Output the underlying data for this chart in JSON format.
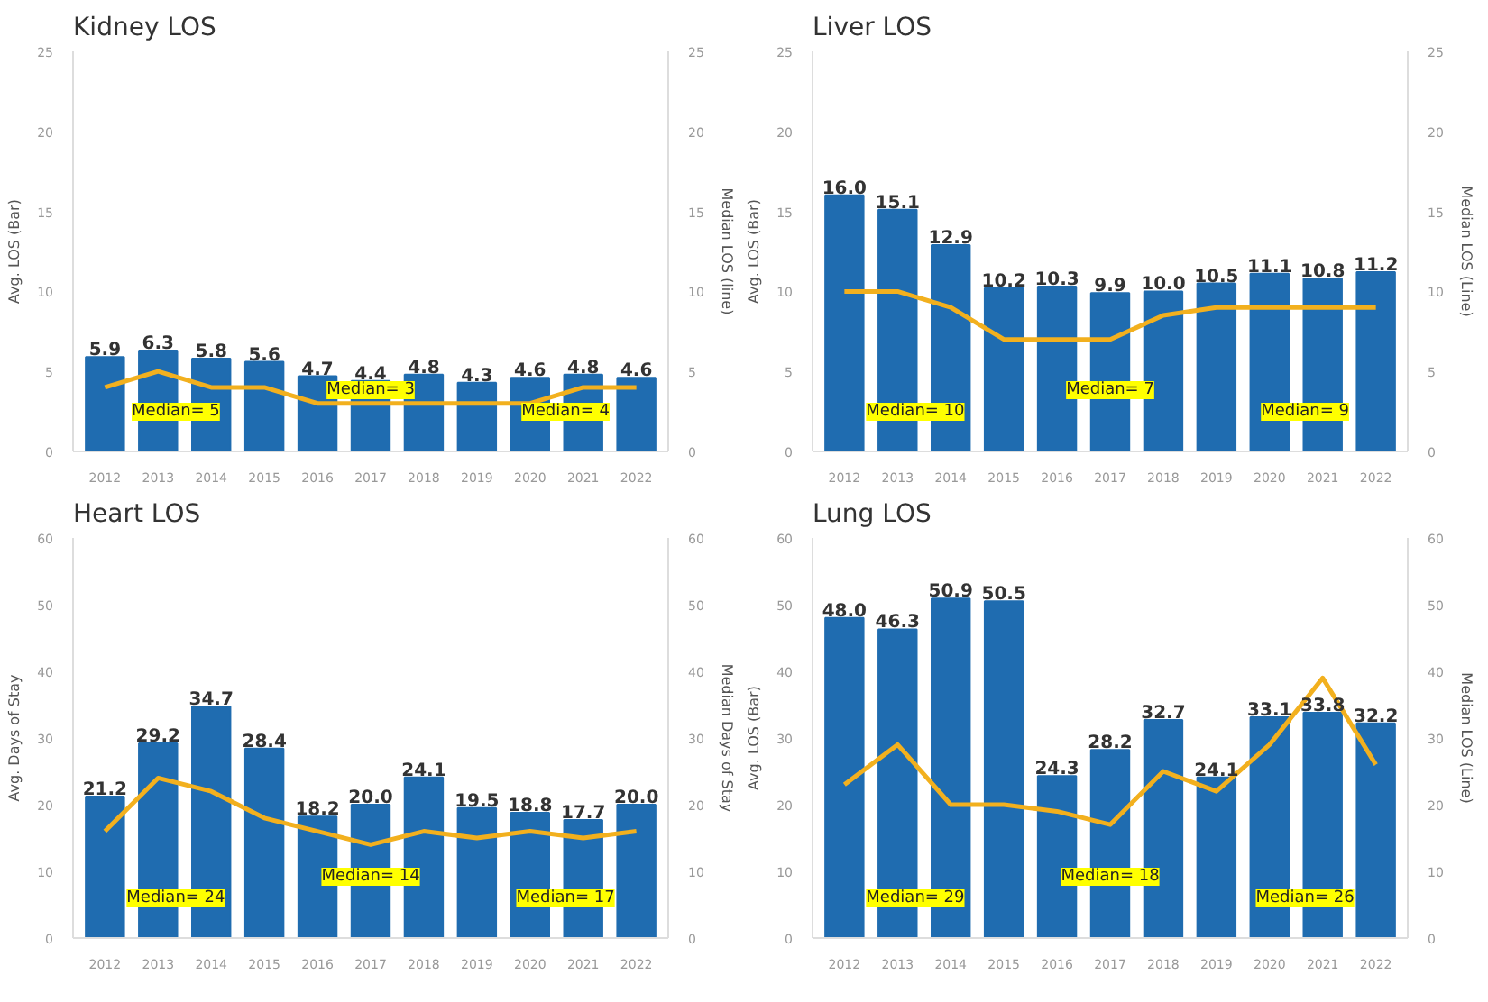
{
  "chart_data": [
    {
      "type": "bar",
      "title": "Kidney LOS",
      "ylabel": "Avg. LOS (Bar)",
      "y2label": "Median LOS (line)",
      "categories": [
        "2012",
        "2013",
        "2014",
        "2015",
        "2016",
        "2017",
        "2018",
        "2019",
        "2020",
        "2021",
        "2022"
      ],
      "ylim": [
        0,
        25
      ],
      "yticks": [
        0,
        5,
        10,
        15,
        20,
        25
      ],
      "y2lim": [
        0,
        25
      ],
      "y2ticks": [
        0,
        5,
        10,
        15,
        20,
        25
      ],
      "grid": false,
      "series": [
        {
          "color": "#1f6cb0",
          "values": [
            5.9,
            6.3,
            5.8,
            5.6,
            4.7,
            4.4,
            4.8,
            4.3,
            4.6,
            4.8,
            4.6
          ],
          "value_labels": [
            "5.9",
            "6.3",
            "5.8",
            "5.6",
            "4.7",
            "4.4",
            "4.8",
            "4.3",
            "4.6",
            "4.8",
            "4.6"
          ]
        },
        {
          "type": "line",
          "axis": "y2",
          "color": "#f2b01e",
          "values": [
            4,
            5,
            4,
            4,
            3,
            3,
            3,
            3,
            3,
            4,
            4
          ]
        }
      ],
      "annotations": [
        "Median= 5",
        "Median= 3",
        "Median= 4"
      ]
    },
    {
      "type": "bar",
      "title": "Liver LOS",
      "ylabel": "Avg. LOS (Bar)",
      "y2label": "Median LOS (Line)",
      "categories": [
        "2012",
        "2013",
        "2014",
        "2015",
        "2016",
        "2017",
        "2018",
        "2019",
        "2020",
        "2021",
        "2022"
      ],
      "ylim": [
        0,
        25
      ],
      "yticks": [
        0,
        5,
        10,
        15,
        20,
        25
      ],
      "y2lim": [
        0,
        25
      ],
      "y2ticks": [
        0,
        5,
        10,
        15,
        20,
        25
      ],
      "grid": false,
      "series": [
        {
          "color": "#1f6cb0",
          "values": [
            16.0,
            15.1,
            12.9,
            10.2,
            10.3,
            9.9,
            10.0,
            10.5,
            11.1,
            10.8,
            11.2
          ],
          "value_labels": [
            "16.0",
            "15.1",
            "12.9",
            "10.2",
            "10.3",
            "9.9",
            "10.0",
            "10.5",
            "11.1",
            "10.8",
            "11.2"
          ]
        },
        {
          "type": "line",
          "axis": "y2",
          "color": "#f2b01e",
          "values": [
            10,
            10,
            9,
            7,
            7,
            7,
            8.5,
            9,
            9,
            9,
            9
          ]
        }
      ],
      "annotations": [
        "Median= 10",
        "Median= 7",
        "Median= 9"
      ]
    },
    {
      "type": "bar",
      "title": "Heart LOS",
      "ylabel": "Avg. Days of Stay",
      "y2label": "Median Days of Stay",
      "categories": [
        "2012",
        "2013",
        "2014",
        "2015",
        "2016",
        "2017",
        "2018",
        "2019",
        "2020",
        "2021",
        "2022"
      ],
      "ylim": [
        0,
        60
      ],
      "yticks": [
        0,
        10,
        20,
        30,
        40,
        50,
        60
      ],
      "y2lim": [
        0,
        60
      ],
      "y2ticks": [
        0,
        10,
        20,
        30,
        40,
        50,
        60
      ],
      "grid": false,
      "series": [
        {
          "color": "#1f6cb0",
          "values": [
            21.2,
            29.2,
            34.7,
            28.4,
            18.2,
            20.0,
            24.1,
            19.5,
            18.8,
            17.7,
            20.0
          ],
          "value_labels": [
            "21.2",
            "29.2",
            "34.7",
            "28.4",
            "18.2",
            "20.0",
            "24.1",
            "19.5",
            "18.8",
            "17.7",
            "20.0"
          ]
        },
        {
          "type": "line",
          "axis": "y2",
          "color": "#f2b01e",
          "values": [
            16,
            24,
            22,
            18,
            16,
            14,
            16,
            15,
            16,
            15,
            16
          ]
        }
      ],
      "annotations": [
        "Median= 24",
        "Median= 14",
        "Median= 17"
      ]
    },
    {
      "type": "bar",
      "title": "Lung LOS",
      "ylabel": "Avg. LOS (Bar)",
      "y2label": "Median LOS (Line)",
      "categories": [
        "2012",
        "2013",
        "2014",
        "2015",
        "2016",
        "2017",
        "2018",
        "2019",
        "2020",
        "2021",
        "2022"
      ],
      "ylim": [
        0,
        60
      ],
      "yticks": [
        0,
        10,
        20,
        30,
        40,
        50,
        60
      ],
      "y2lim": [
        0,
        60
      ],
      "y2ticks": [
        0,
        10,
        20,
        30,
        40,
        50,
        60
      ],
      "grid": false,
      "series": [
        {
          "color": "#1f6cb0",
          "values": [
            48.0,
            46.3,
            50.9,
            50.5,
            24.3,
            28.2,
            32.7,
            24.1,
            33.1,
            33.8,
            32.2
          ],
          "value_labels": [
            "48.0",
            "46.3",
            "50.9",
            "50.5",
            "24.3",
            "28.2",
            "32.7",
            "24.1",
            "33.1",
            "33.8",
            "32.2"
          ]
        },
        {
          "type": "line",
          "axis": "y2",
          "color": "#f2b01e",
          "values": [
            23,
            29,
            20,
            20,
            19,
            17,
            25,
            22,
            29,
            39,
            26
          ]
        }
      ],
      "annotations": [
        "Median= 29",
        "Median= 18",
        "Median= 26"
      ]
    }
  ]
}
